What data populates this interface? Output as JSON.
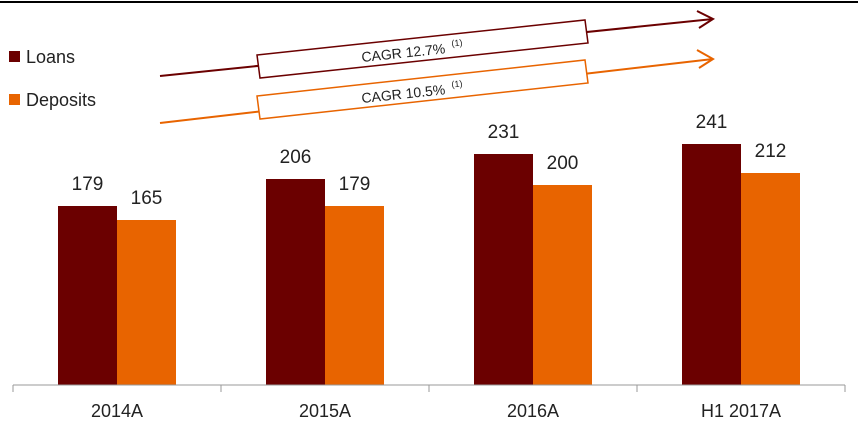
{
  "colors": {
    "loans": "#6b0000",
    "deposits": "#e86400",
    "axis": "#999999",
    "top_rule": "#000000",
    "text": "#222222"
  },
  "cagr": [
    {
      "label": "CAGR 12.7%",
      "note": "(1)",
      "color_key": "loans"
    },
    {
      "label": "CAGR 10.5%",
      "note": "(1)",
      "color_key": "deposits"
    }
  ],
  "chart_data": {
    "type": "bar",
    "categories": [
      "2014A",
      "2015A",
      "2016A",
      "H1 2017A"
    ],
    "series": [
      {
        "name": "Loans",
        "values": [
          179,
          206,
          231,
          241
        ]
      },
      {
        "name": "Deposits",
        "values": [
          165,
          179,
          200,
          212
        ]
      }
    ],
    "title": "",
    "xlabel": "",
    "ylabel": "",
    "ylim": [
      0,
      260
    ],
    "grid": false,
    "legend": "top-left",
    "data_labels": true
  }
}
